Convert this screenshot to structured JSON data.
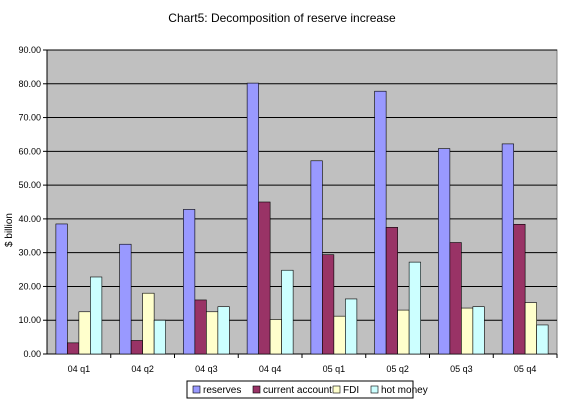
{
  "chart_data": {
    "type": "bar",
    "title": "Chart5: Decomposition of reserve increase",
    "xlabel": "",
    "ylabel": "$ billion",
    "ylim": [
      0,
      90
    ],
    "yticks": [
      "0.00",
      "10.00",
      "20.00",
      "30.00",
      "40.00",
      "50.00",
      "60.00",
      "70.00",
      "80.00",
      "90.00"
    ],
    "categories": [
      "04 q1",
      "04 q2",
      "04 q3",
      "04 q4",
      "05 q1",
      "05 q2",
      "05 q3",
      "05 q4"
    ],
    "series": [
      {
        "name": "reserves",
        "color": "#9999ff",
        "values": [
          38.5,
          32.5,
          42.8,
          80.2,
          57.2,
          77.8,
          60.8,
          62.2
        ]
      },
      {
        "name": "current account",
        "color": "#993366",
        "values": [
          3.3,
          4.0,
          16.0,
          45.0,
          29.4,
          37.5,
          33.0,
          38.4
        ]
      },
      {
        "name": "FDI",
        "color": "#ffffcc",
        "values": [
          12.5,
          18.0,
          12.5,
          10.2,
          11.2,
          13.0,
          13.6,
          15.2
        ]
      },
      {
        "name": "hot money",
        "color": "#ccffff",
        "values": [
          22.8,
          10.0,
          14.0,
          24.8,
          16.3,
          27.2,
          14.0,
          8.6
        ]
      }
    ],
    "plot_background": "#c0c0c0",
    "grid": true,
    "legend_position": "bottom"
  }
}
